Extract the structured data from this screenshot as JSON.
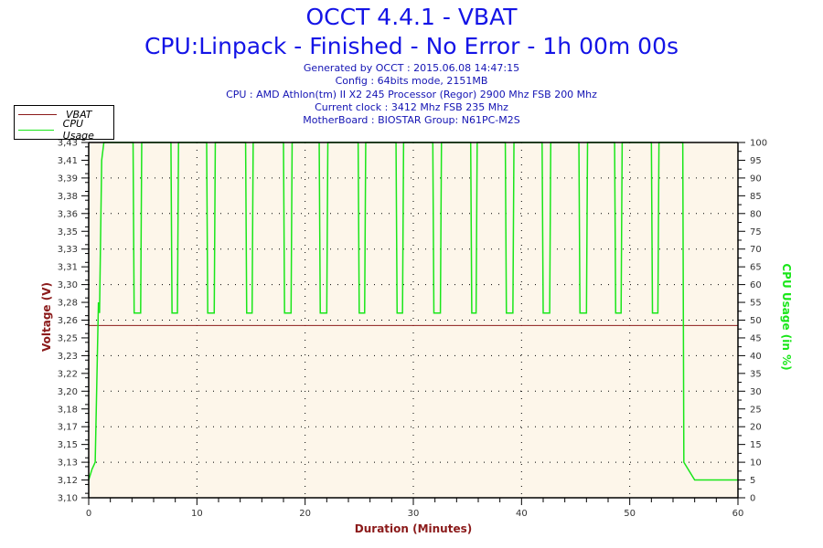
{
  "header": {
    "title": "OCCT 4.4.1 - VBAT",
    "subtitle": "CPU:Linpack - Finished - No Error - 1h 00m 00s",
    "info": [
      "Generated by OCCT : 2015.06.08 14:47:15",
      "Config : 64bits mode, 2151MB",
      "CPU : AMD Athlon(tm) II X2 245 Processor (Regor) 2900 Mhz FSB 200 Mhz",
      "Current clock : 3412 Mhz FSB 235 Mhz",
      "MotherBoard : BIOSTAR Group: N61PC-M2S"
    ]
  },
  "legend": {
    "items": [
      {
        "label": "VBAT",
        "color": "#8b1a1a"
      },
      {
        "label": "CPU Usage",
        "color": "#19e619"
      }
    ]
  },
  "colors": {
    "title": "#1414e6",
    "vbat": "#8b1a1a",
    "cpu": "#19e619",
    "plot_bg": "#fdf6ea"
  },
  "chart_data": {
    "type": "line",
    "title": "OCCT 4.4.1 - VBAT",
    "subtitle": "CPU:Linpack - Finished - No Error - 1h 00m 00s",
    "xlabel": "Duration (Minutes)",
    "ylabel": "Voltage (V)",
    "ylabel_right": "CPU Usage (in %)",
    "xlim": [
      0,
      60
    ],
    "ylim": [
      3.1,
      3.43
    ],
    "ylim_right": [
      0,
      100
    ],
    "x_ticks": [
      0,
      10,
      20,
      30,
      40,
      50,
      60
    ],
    "y_ticks": [
      "3,10",
      "3,12",
      "3,13",
      "3,15",
      "3,17",
      "3,18",
      "3,20",
      "3,22",
      "3,23",
      "3,25",
      "3,26",
      "3,28",
      "3,30",
      "3,31",
      "3,33",
      "3,35",
      "3,36",
      "3,38",
      "3,39",
      "3,41",
      "3,43"
    ],
    "y_ticks_right": [
      0,
      5,
      10,
      15,
      20,
      25,
      30,
      35,
      40,
      45,
      50,
      55,
      60,
      65,
      70,
      75,
      80,
      85,
      90,
      95,
      100
    ],
    "grid": "dotted",
    "legend_position": "top-left",
    "series": [
      {
        "name": "VBAT",
        "axis": "left",
        "x": [
          0,
          60
        ],
        "values": [
          3.26,
          3.26
        ]
      },
      {
        "name": "CPU Usage",
        "axis": "right",
        "x": [
          0,
          0.3,
          0.6,
          0.9,
          1.0,
          1.2,
          1.4,
          4.1,
          4.2,
          4.8,
          4.9,
          7.6,
          7.7,
          8.2,
          8.3,
          10.9,
          11.0,
          11.6,
          11.7,
          14.5,
          14.6,
          15.1,
          15.2,
          18.0,
          18.1,
          18.7,
          18.8,
          21.3,
          21.4,
          22.0,
          22.1,
          24.9,
          25.0,
          25.5,
          25.6,
          28.4,
          28.5,
          29.0,
          29.1,
          31.8,
          31.9,
          32.5,
          32.6,
          35.3,
          35.4,
          35.8,
          35.9,
          38.5,
          38.6,
          39.2,
          39.3,
          41.9,
          42.0,
          42.6,
          42.7,
          45.3,
          45.4,
          46.0,
          46.1,
          48.6,
          48.7,
          49.2,
          49.3,
          52.0,
          52.1,
          52.6,
          52.7,
          54.9,
          55.0,
          56.0,
          58.0,
          60.0
        ],
        "values": [
          5,
          8,
          10,
          55,
          52,
          95,
          100,
          100,
          52,
          52,
          100,
          100,
          52,
          52,
          100,
          100,
          52,
          52,
          100,
          100,
          52,
          52,
          100,
          100,
          52,
          52,
          100,
          100,
          52,
          52,
          100,
          100,
          52,
          52,
          100,
          100,
          52,
          52,
          100,
          100,
          52,
          52,
          100,
          100,
          52,
          52,
          100,
          100,
          52,
          52,
          100,
          100,
          52,
          52,
          100,
          100,
          52,
          52,
          100,
          100,
          52,
          52,
          100,
          100,
          52,
          52,
          100,
          100,
          10,
          5,
          5,
          5
        ]
      }
    ]
  }
}
